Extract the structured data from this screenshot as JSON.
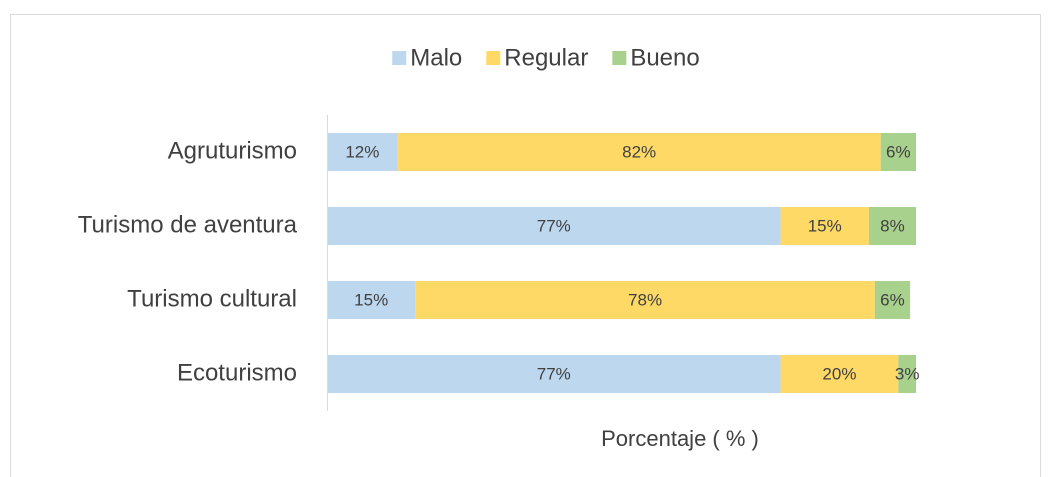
{
  "chart_data": {
    "type": "stacked-barh",
    "x_label": "Porcentaje ( % )",
    "categories": [
      "Agruturismo",
      "Turismo de aventura",
      "Turismo cultural",
      "Ecoturismo"
    ],
    "series": [
      {
        "name": "Malo",
        "color": "#bdd7ee",
        "values": [
          12,
          77,
          15,
          77
        ],
        "value_labels": [
          "12%",
          "77%",
          "15%",
          "77%"
        ]
      },
      {
        "name": "Regular",
        "color": "#ffd966",
        "values": [
          82,
          15,
          78,
          20
        ],
        "value_labels": [
          "82%",
          "15%",
          "78%",
          "20%"
        ]
      },
      {
        "name": "Bueno",
        "color": "#a9d18e",
        "values": [
          6,
          8,
          6,
          3
        ],
        "value_labels": [
          "6%",
          "8%",
          "6%",
          "3%"
        ]
      }
    ],
    "xlim": [
      0,
      100
    ],
    "legend": "top"
  }
}
